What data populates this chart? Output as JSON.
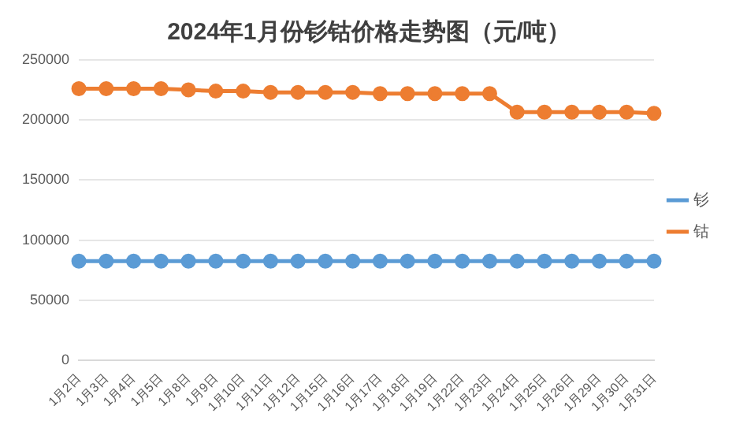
{
  "chart_data": {
    "type": "line",
    "title": "2024年1月份钐钴价格走势图（元/吨）",
    "categories": [
      "1月2日",
      "1月3日",
      "1月4日",
      "1月5日",
      "1月8日",
      "1月9日",
      "1月10日",
      "1月11日",
      "1月12日",
      "1月15日",
      "1月16日",
      "1月17日",
      "1月18日",
      "1月19日",
      "1月22日",
      "1月23日",
      "1月24日",
      "1月25日",
      "1月26日",
      "1月29日",
      "1月30日",
      "1月31日"
    ],
    "series": [
      {
        "name": "钐",
        "color": "#5b9bd5",
        "values": [
          82500,
          82500,
          82500,
          82500,
          82500,
          82500,
          82500,
          82500,
          82500,
          82500,
          82500,
          82500,
          82500,
          82500,
          82500,
          82500,
          82500,
          82500,
          82500,
          82500,
          82500,
          82500
        ]
      },
      {
        "name": "钴",
        "color": "#ed7d31",
        "values": [
          226000,
          226000,
          226000,
          226000,
          225000,
          224000,
          224000,
          223000,
          223000,
          223000,
          223000,
          222000,
          222000,
          222000,
          222000,
          222000,
          206500,
          206500,
          206500,
          206500,
          206500,
          205500
        ]
      }
    ],
    "ylim": [
      0,
      250000
    ],
    "yticks": [
      0,
      50000,
      100000,
      150000,
      200000,
      250000
    ],
    "grid": "y",
    "legend": "right",
    "marker": "circle",
    "line_style": "solid"
  }
}
